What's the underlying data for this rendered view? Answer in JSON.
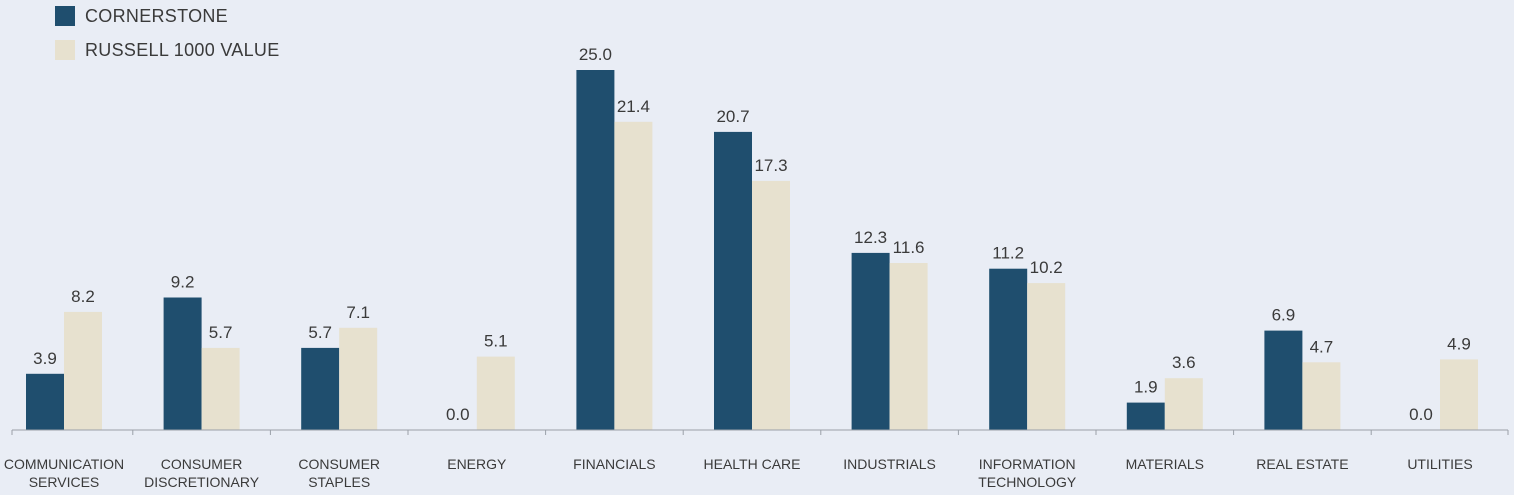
{
  "chart_data": {
    "type": "bar",
    "title": "",
    "xlabel": "",
    "ylabel": "",
    "ylim": [
      0,
      25.0
    ],
    "grid": false,
    "legend_position": "top-left",
    "categories": [
      "COMMUNICATION SERVICES",
      "CONSUMER DISCRETIONARY",
      "CONSUMER STAPLES",
      "ENERGY",
      "FINANCIALS",
      "HEALTH CARE",
      "INDUSTRIALS",
      "INFORMATION TECHNOLOGY",
      "MATERIALS",
      "REAL ESTATE",
      "UTILITIES"
    ],
    "series": [
      {
        "name": "CORNERSTONE",
        "color": "#1f4e6e",
        "values": [
          3.9,
          9.2,
          5.7,
          0.0,
          25.0,
          20.7,
          12.3,
          11.2,
          1.9,
          6.9,
          0.0
        ],
        "labels": [
          "3.9",
          "9.2",
          "5.7",
          "0.0",
          "25.0",
          "20.7",
          "12.3",
          "11.2",
          "1.9",
          "6.9",
          "0.0"
        ]
      },
      {
        "name": "RUSSELL 1000 VALUE",
        "color": "#e7e1cf",
        "values": [
          8.2,
          5.7,
          7.1,
          5.1,
          21.4,
          17.3,
          11.6,
          10.2,
          3.6,
          4.7,
          4.9
        ],
        "labels": [
          "8.2",
          "5.7",
          "7.1",
          "5.1",
          "21.4",
          "17.3",
          "11.6",
          "10.2",
          "3.6",
          "4.7",
          "4.9"
        ]
      }
    ]
  },
  "colors": {
    "background": "#e9edf5",
    "axis": "#9aa0a8",
    "text": "#3a3a3a"
  }
}
